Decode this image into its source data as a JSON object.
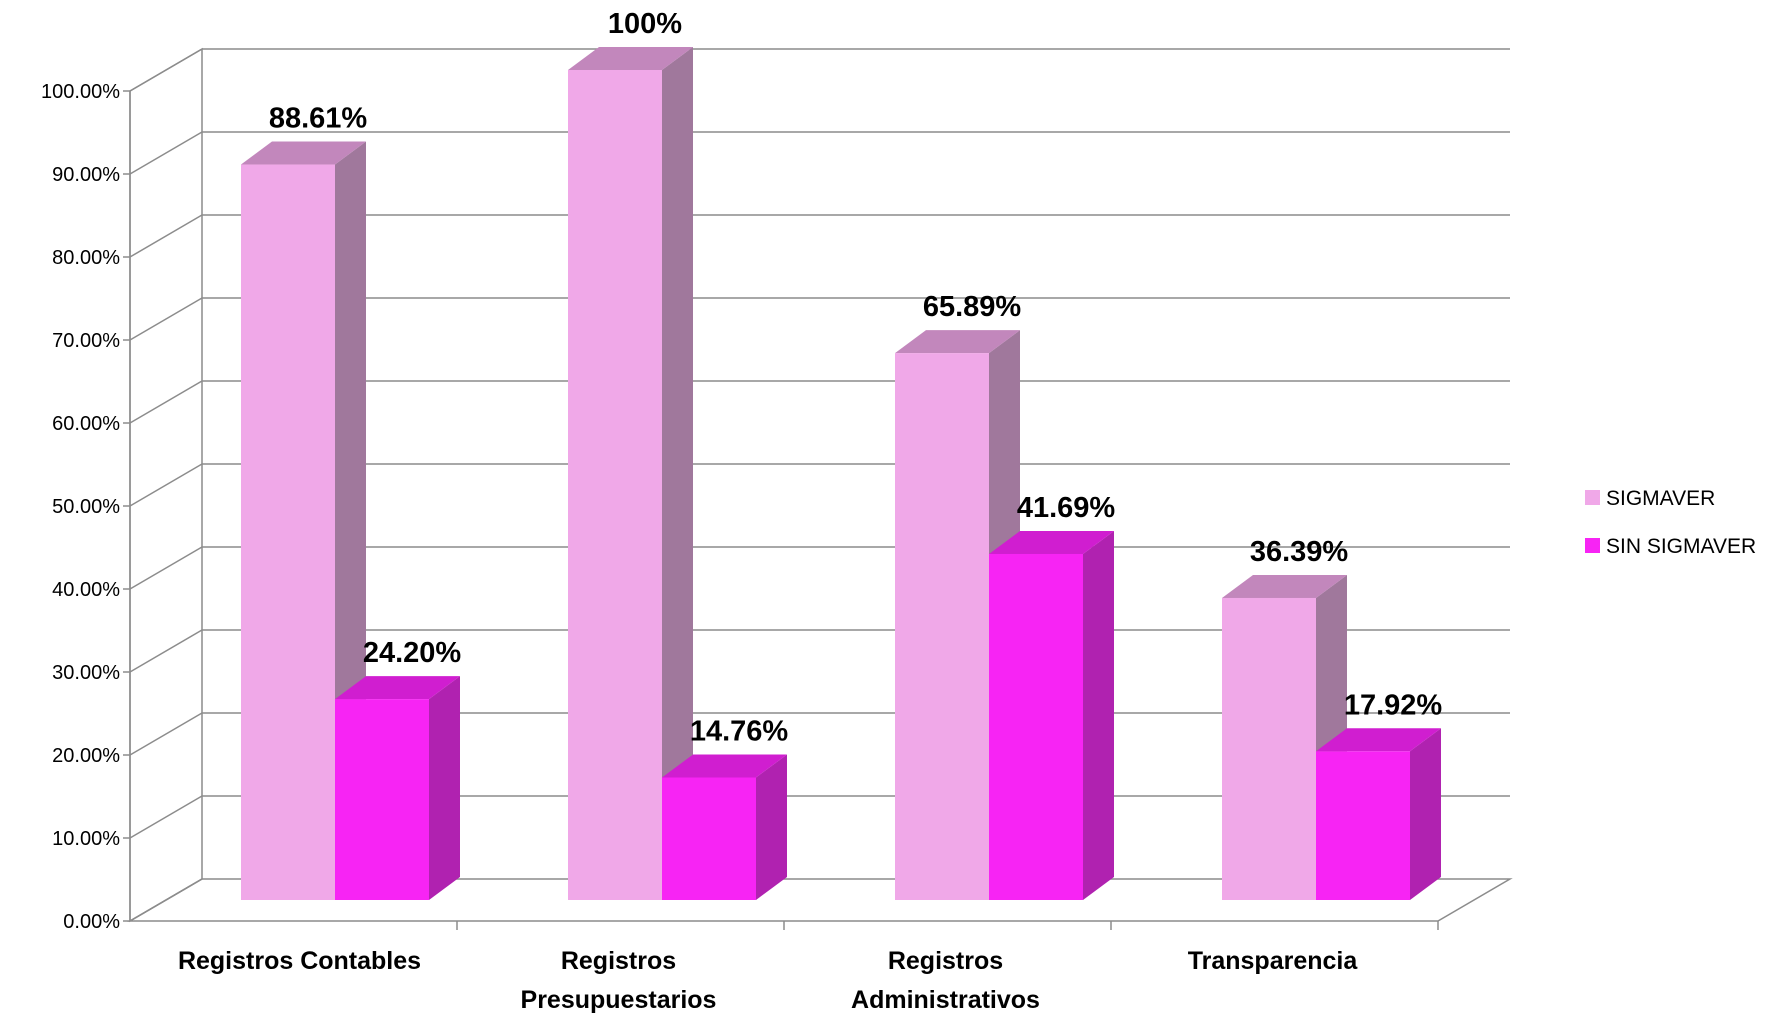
{
  "chart_data": {
    "type": "bar",
    "categories": [
      [
        "Registros Contables"
      ],
      [
        "Registros",
        "Presupuestarios"
      ],
      [
        "Registros",
        "Administrativos"
      ],
      [
        "Transparencia"
      ]
    ],
    "series": [
      {
        "name": "SIGMAVER",
        "values": [
          88.61,
          100,
          65.89,
          36.39
        ],
        "labels": [
          "88.61%",
          "100%",
          "65.89%",
          "36.39%"
        ],
        "color": "#f0a8e8"
      },
      {
        "name": "SIN SIGMAVER",
        "values": [
          24.2,
          14.76,
          41.69,
          17.92
        ],
        "labels": [
          "24.20%",
          "14.76%",
          "41.69%",
          "17.92%"
        ],
        "color": "#f724f4"
      }
    ],
    "yticks": [
      "0.00%",
      "10.00%",
      "20.00%",
      "30.00%",
      "40.00%",
      "50.00%",
      "60.00%",
      "70.00%",
      "80.00%",
      "90.00%",
      "100.00%"
    ],
    "ylim": [
      0,
      100
    ],
    "grid": true,
    "legend_position": "right",
    "style": "3d-clustered-column"
  }
}
